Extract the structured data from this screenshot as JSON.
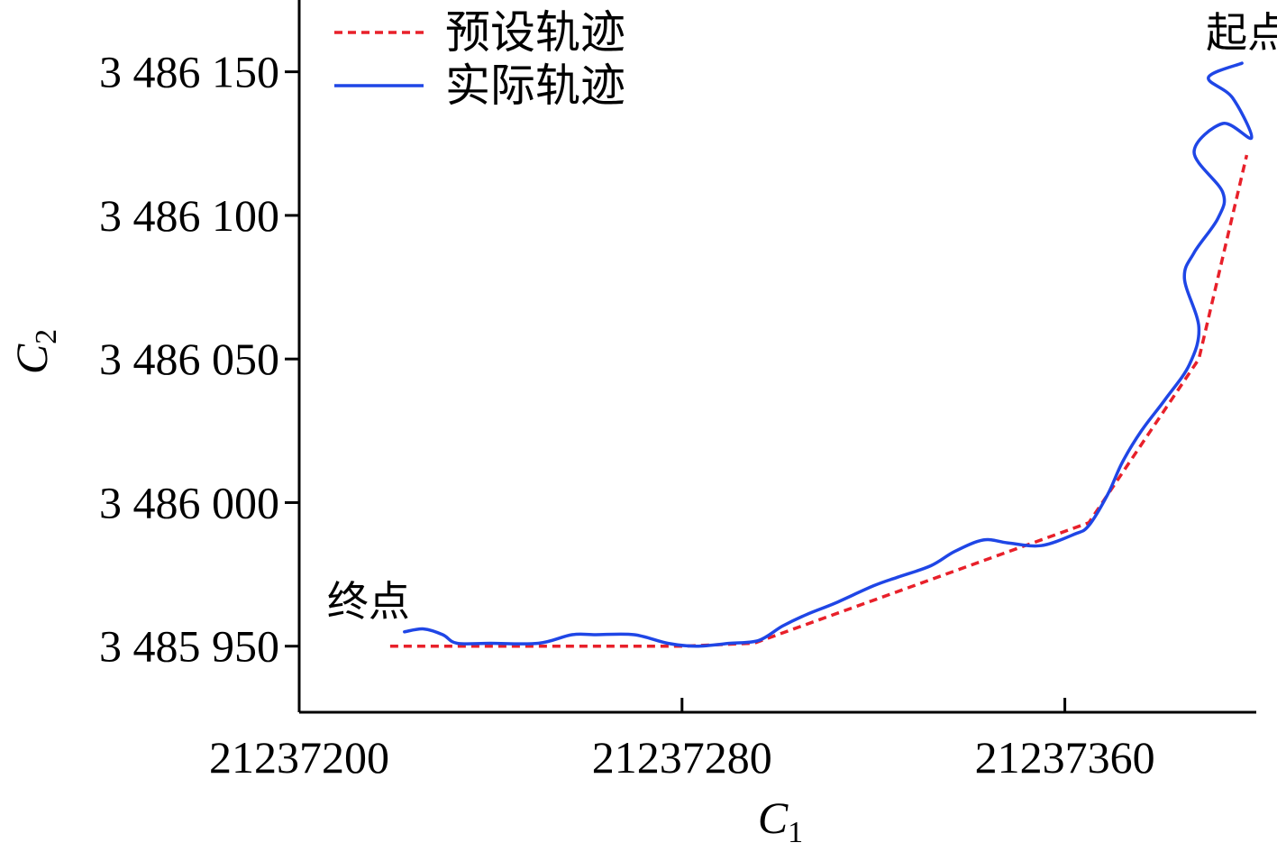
{
  "chart_data": {
    "type": "line",
    "title": "",
    "xlabel": {
      "main": "C",
      "sub": "1"
    },
    "ylabel": {
      "main": "C",
      "sub": "2"
    },
    "xlim": [
      21237200,
      21237400
    ],
    "ylim": [
      3485927,
      3486175
    ],
    "x_ticks": [
      21237200,
      21237280,
      21237360
    ],
    "x_tick_labels": [
      "21237200",
      "21237280",
      "21237360"
    ],
    "y_ticks": [
      3485950,
      3486000,
      3486050,
      3486100,
      3486150
    ],
    "y_tick_labels": [
      "3 485 950",
      "3 486 000",
      "3 486 050",
      "3 486 100",
      "3 486 150"
    ],
    "grid": false,
    "legend_position": "top-left",
    "series": [
      {
        "name": "预设轨迹",
        "color": "#e8202a",
        "style": "dashed",
        "x": [
          21237219,
          21237250,
          21237280,
          21237295,
          21237320,
          21237345,
          21237365,
          21237388,
          21237398
        ],
        "y": [
          3485950,
          3485950,
          3485950,
          3485951,
          3485966,
          3485981,
          3485993,
          3486050,
          3486121
        ]
      },
      {
        "name": "实际轨迹",
        "color": "#1f46e6",
        "style": "solid",
        "x": [
          21237222,
          21237226,
          21237230,
          21237233,
          21237240,
          21237250,
          21237257,
          21237262,
          21237270,
          21237277,
          21237283,
          21237290,
          21237296,
          21237301,
          21237306,
          21237312,
          21237320,
          21237325,
          21237332,
          21237337,
          21237343,
          21237348,
          21237355,
          21237362,
          21237365,
          21237369,
          21237372,
          21237376,
          21237381,
          21237386,
          21237388,
          21237385,
          21237387,
          21237392,
          21237393,
          21237387,
          21237393,
          21237399,
          21237395,
          21237390,
          21237397
        ],
        "y": [
          3485955,
          3485956,
          3485954,
          3485951,
          3485951,
          3485951,
          3485954,
          3485954,
          3485954,
          3485951,
          3485950,
          3485951,
          3485952,
          3485957,
          3485961,
          3485965,
          3485971,
          3485974,
          3485978,
          3485983,
          3485987,
          3485986,
          3485985,
          3485989,
          3485992,
          3486003,
          3486014,
          3486025,
          3486036,
          3486048,
          3486061,
          3486078,
          3486087,
          3486099,
          3486108,
          3486122,
          3486132,
          3486127,
          3486141,
          3486148,
          3486153
        ]
      }
    ],
    "annotations": [
      {
        "text": "起点"
      },
      {
        "text": "终点"
      }
    ]
  }
}
